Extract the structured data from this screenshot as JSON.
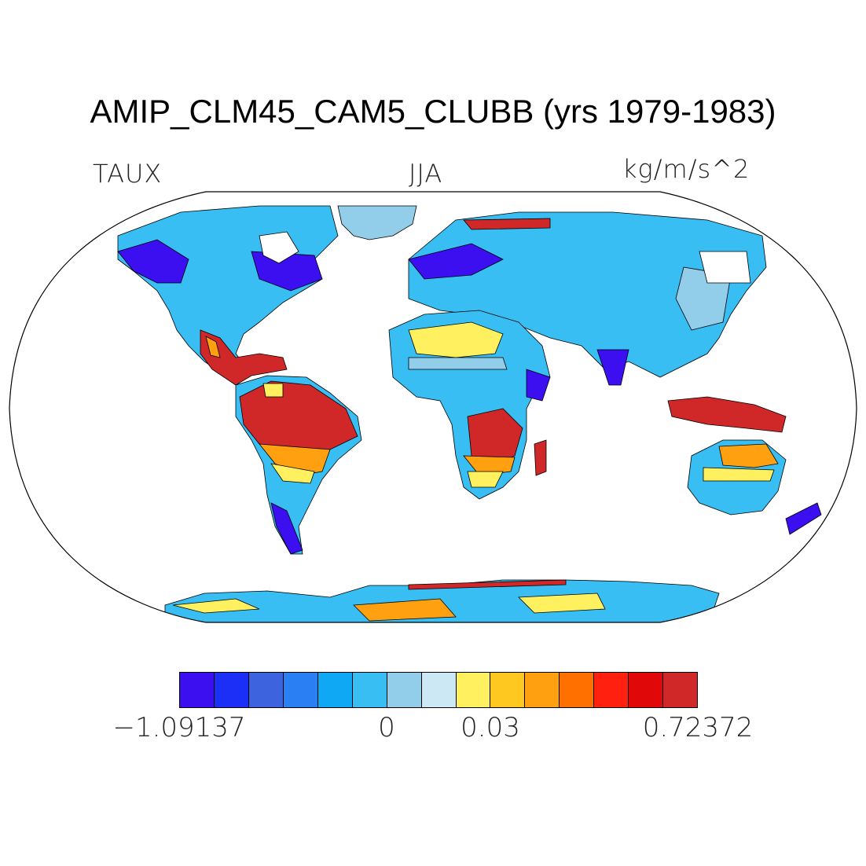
{
  "title": "AMIP_CLM45_CAM5_CLUBB (yrs 1979-1983)",
  "labels": {
    "variable": "TAUX",
    "season": "JJA",
    "units": "kg/m/s^2"
  },
  "colorbar": {
    "colors": [
      "#3b0ff0",
      "#1c2ff6",
      "#3e63de",
      "#2a80f2",
      "#0ea8f4",
      "#38bef2",
      "#92cdea",
      "#cbe8f4",
      "#fff060",
      "#ffc820",
      "#ffa010",
      "#ff7000",
      "#ff2010",
      "#e00808",
      "#d02828"
    ],
    "tick_labels": [
      "−1.09137",
      "0",
      "0.03",
      "0.72372"
    ]
  },
  "map_colors": {
    "land_blue_dark": "#3b0ff0",
    "land_blue": "#2a80f2",
    "land_blue_light": "#38bef2",
    "land_blue_pale": "#92cdea",
    "land_yellow": "#fff060",
    "land_orange": "#ffa010",
    "land_red": "#d02828",
    "coast": "#000000"
  }
}
